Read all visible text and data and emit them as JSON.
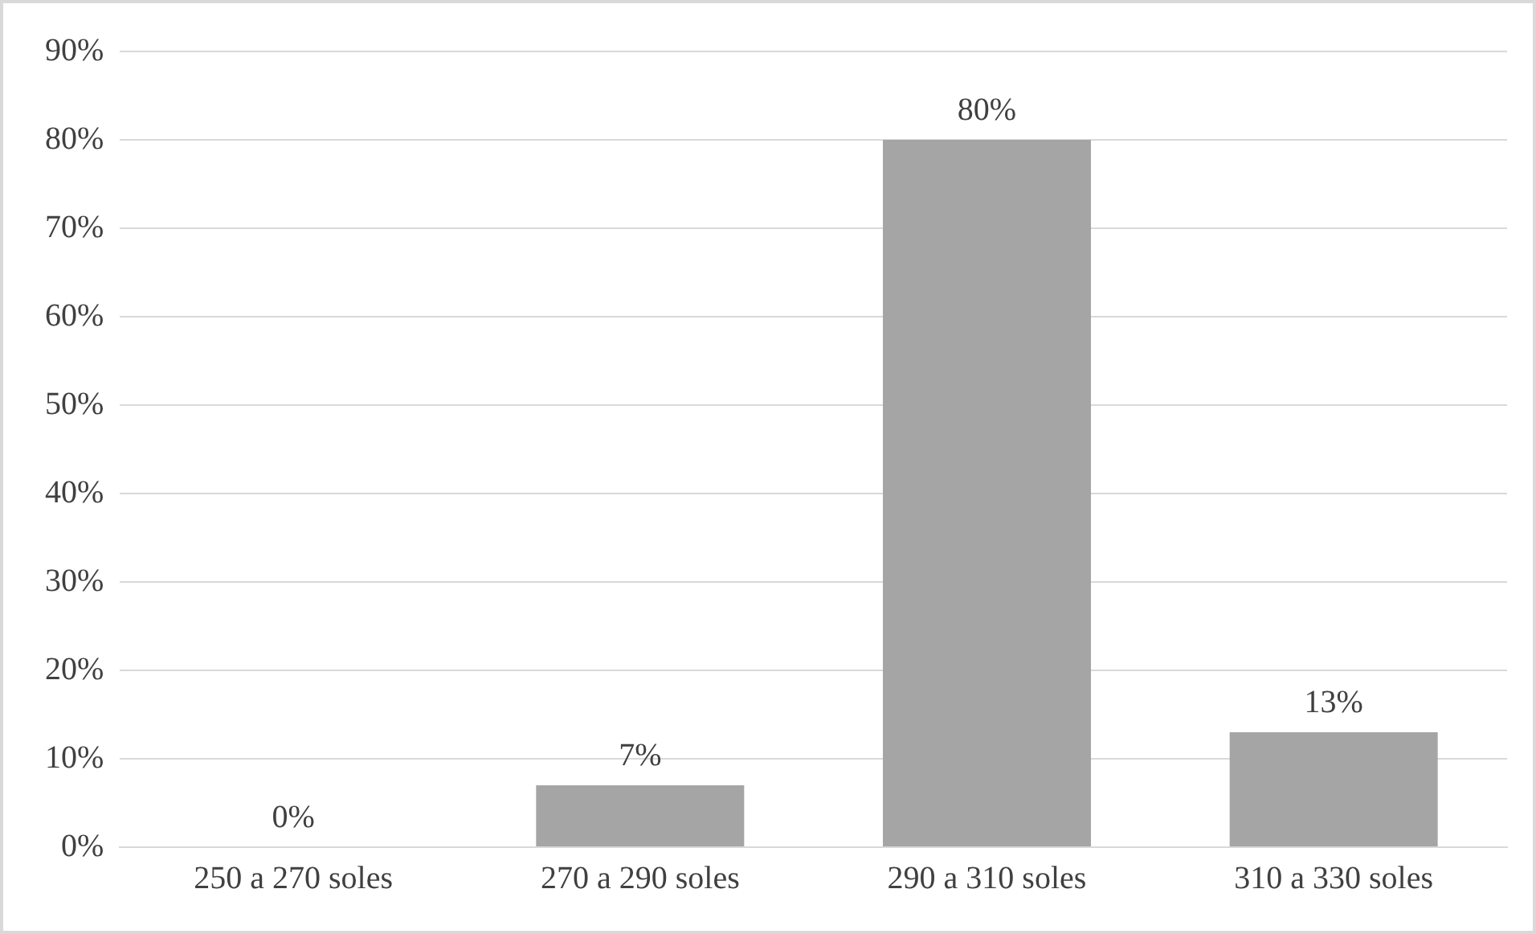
{
  "chart_data": {
    "type": "bar",
    "categories": [
      "250 a 270 soles",
      "270 a 290 soles",
      "290 a 310 soles",
      "310 a 330 soles"
    ],
    "values": [
      0,
      7,
      80,
      13
    ],
    "value_labels": [
      "0%",
      "7%",
      "80%",
      "13%"
    ],
    "color": "#a5a5a5",
    "ylim": [
      0,
      90
    ],
    "yticks": [
      {
        "value": 0,
        "label": "0%"
      },
      {
        "value": 10,
        "label": "10%"
      },
      {
        "value": 20,
        "label": "20%"
      },
      {
        "value": 30,
        "label": "30%"
      },
      {
        "value": 40,
        "label": "40%"
      },
      {
        "value": 50,
        "label": "50%"
      },
      {
        "value": 60,
        "label": "60%"
      },
      {
        "value": 70,
        "label": "70%"
      },
      {
        "value": 80,
        "label": "80%"
      },
      {
        "value": 90,
        "label": "90%"
      }
    ],
    "grid": "y",
    "legend": false
  }
}
